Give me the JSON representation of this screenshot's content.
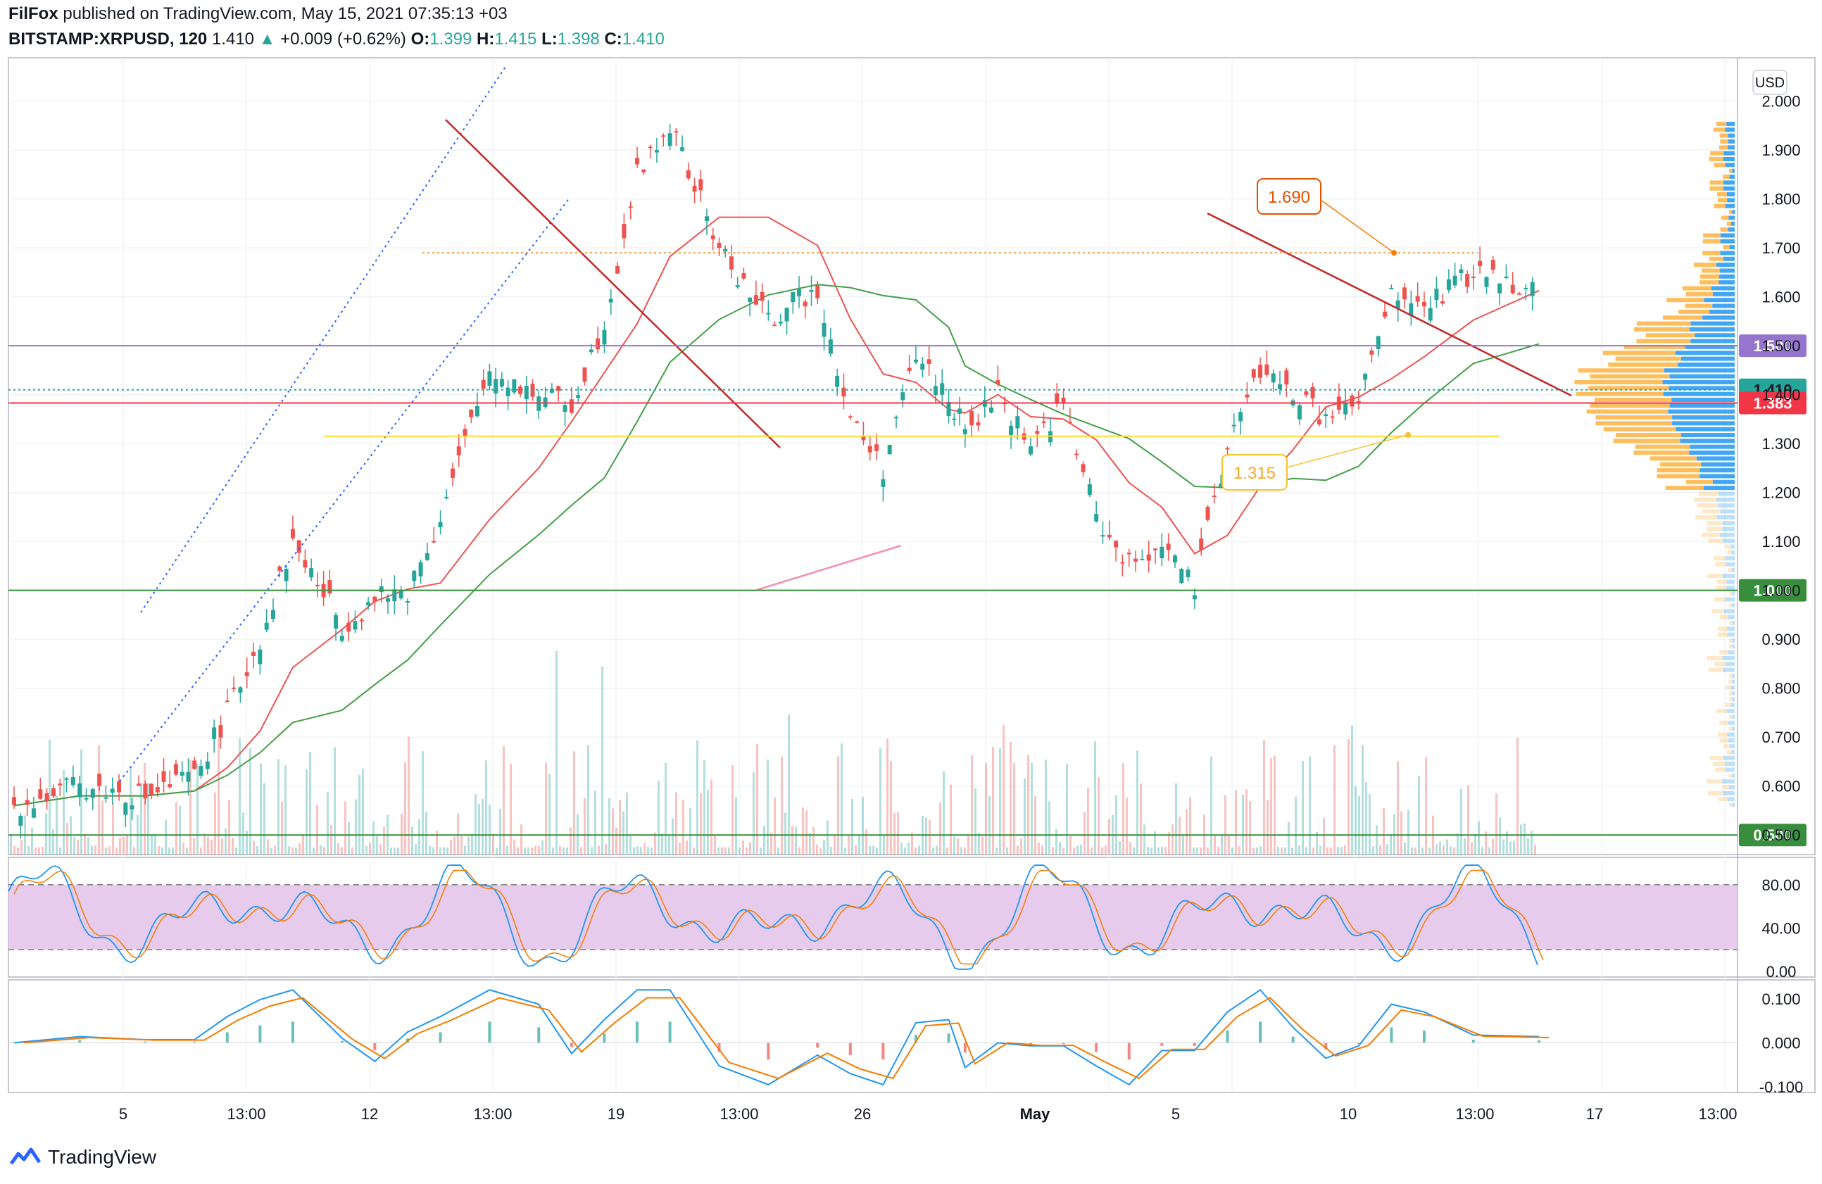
{
  "header": {
    "publisher": "FilFox",
    "published_text": "published on TradingView.com, May 15, 2021 07:35:13 +03",
    "symbol": "BITSTAMP:XRPUSD, 120",
    "last": "1.410",
    "change": "+0.009 (+0.62%)",
    "open_label": "O:",
    "open": "1.399",
    "high_label": "H:",
    "high": "1.415",
    "low_label": "L:",
    "low": "1.398",
    "close_label": "C:",
    "close": "1.410"
  },
  "footer": {
    "brand": "TradingView"
  },
  "colors": {
    "up": "#26a69a",
    "down": "#ef5350",
    "trend": "#c62828",
    "level_purple": "#9575cd",
    "level_green": "#388e3c",
    "level_red": "#f23645",
    "level_yellow": "#fdd835",
    "ma_red": "#ef5350",
    "ma_green": "#43a047",
    "rsi_fill": "#e1bee7",
    "stoch_k": "#2196f3",
    "stoch_d": "#f57c00",
    "macd_line": "#2196f3",
    "signal_line": "#f57c00"
  },
  "chart_data": {
    "type": "line",
    "price_axis": {
      "currency": "USD",
      "ylim": [
        0.46,
        2.08
      ],
      "ticks": [
        "2.000",
        "1.900",
        "1.800",
        "1.700",
        "1.600",
        "1.500",
        "1.400",
        "1.300",
        "1.200",
        "1.100",
        "1.000",
        "0.900",
        "0.800",
        "0.700",
        "0.600",
        "0.500"
      ]
    },
    "x_ticks": [
      "5",
      "13:00",
      "12",
      "13:00",
      "19",
      "13:00",
      "26",
      "May",
      "5",
      "10",
      "13:00",
      "17",
      "13:00"
    ],
    "price_path": {
      "x": [
        0,
        20,
        40,
        55,
        65,
        75,
        85,
        100,
        110,
        120,
        130,
        145,
        160,
        170,
        180,
        190,
        200,
        215,
        230,
        245,
        255,
        265,
        275,
        285,
        290,
        300,
        310,
        320,
        330,
        340,
        350,
        360,
        370,
        380,
        390,
        400,
        410,
        420,
        430,
        445,
        465
      ],
      "close": [
        0.56,
        0.6,
        0.58,
        0.62,
        0.75,
        0.9,
        1.1,
        0.93,
        0.98,
        1.0,
        1.15,
        1.45,
        1.4,
        1.38,
        1.55,
        1.85,
        1.95,
        1.7,
        1.55,
        1.62,
        1.35,
        1.25,
        1.48,
        1.4,
        1.32,
        1.4,
        1.3,
        1.38,
        1.15,
        1.05,
        1.1,
        1.0,
        1.3,
        1.45,
        1.4,
        1.35,
        1.38,
        1.6,
        1.58,
        1.65,
        1.62
      ]
    },
    "price_levels": [
      {
        "name": "1.500",
        "value": 1.5,
        "color": "#9575cd"
      },
      {
        "name": "1.410",
        "value": 1.41,
        "color": "#26a69a"
      },
      {
        "name": "1.383",
        "value": 1.383,
        "color": "#f23645"
      },
      {
        "name": "1.000",
        "value": 1.0,
        "color": "#388e3c"
      },
      {
        "name": "0.500",
        "value": 0.5,
        "color": "#388e3c"
      }
    ],
    "callouts": [
      {
        "label": "1.690",
        "value": 1.69
      },
      {
        "label": "1.315",
        "value": 1.315
      }
    ],
    "stoch_rsi": {
      "ticks": [
        "80.00",
        "40.00",
        "0.00"
      ],
      "band": [
        20,
        80
      ],
      "ylim": [
        0,
        100
      ]
    },
    "macd": {
      "ticks": [
        "0.100",
        "0.000",
        "-0.100"
      ],
      "ylim": [
        -0.1,
        0.13
      ]
    }
  }
}
